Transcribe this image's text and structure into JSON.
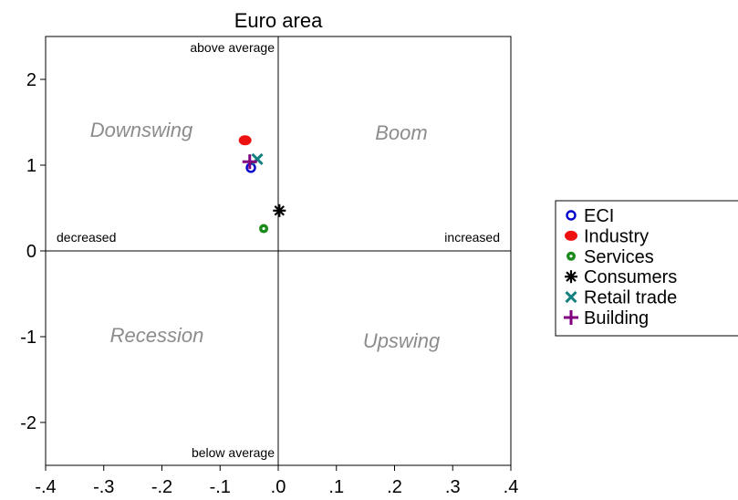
{
  "chart_data": {
    "type": "scatter",
    "title": "Euro area",
    "xlim": [
      -0.4,
      0.4
    ],
    "ylim": [
      -2.5,
      2.5
    ],
    "x_ticks": [
      -0.4,
      -0.3,
      -0.2,
      -0.1,
      0.0,
      0.1,
      0.2,
      0.3,
      0.4
    ],
    "x_tick_labels": [
      "-.4",
      "-.3",
      "-.2",
      "-.1",
      ".0",
      ".1",
      ".2",
      ".3",
      ".4"
    ],
    "y_ticks": [
      -2,
      -1,
      0,
      1,
      2
    ],
    "y_tick_labels": [
      "-2",
      "-1",
      "0",
      "1",
      "2"
    ],
    "grid": false,
    "legend_placement": "right",
    "axis_annotations": {
      "top": "above average",
      "bottom": "below average",
      "left": "decreased",
      "right": "increased"
    },
    "quadrant_labels": {
      "top_left": "Downswing",
      "top_right": "Boom",
      "bottom_left": "Recession",
      "bottom_right": "Upswing"
    },
    "series": [
      {
        "name": "ECI",
        "marker": "open-circle",
        "color": "#0000cc",
        "x": -0.047,
        "y": 0.97
      },
      {
        "name": "Industry",
        "marker": "filled-circle",
        "color": "#ee1111",
        "x": -0.057,
        "y": 1.29
      },
      {
        "name": "Services",
        "marker": "dotted-circle",
        "color": "#1a8a1a",
        "x": -0.025,
        "y": 0.26
      },
      {
        "name": "Consumers",
        "marker": "asterisk",
        "color": "#000000",
        "x": 0.002,
        "y": 0.47
      },
      {
        "name": "Retail trade",
        "marker": "x-cross",
        "color": "#148080",
        "x": -0.036,
        "y": 1.07
      },
      {
        "name": "Building",
        "marker": "plus",
        "color": "#800080",
        "x": -0.049,
        "y": 1.04
      }
    ]
  }
}
